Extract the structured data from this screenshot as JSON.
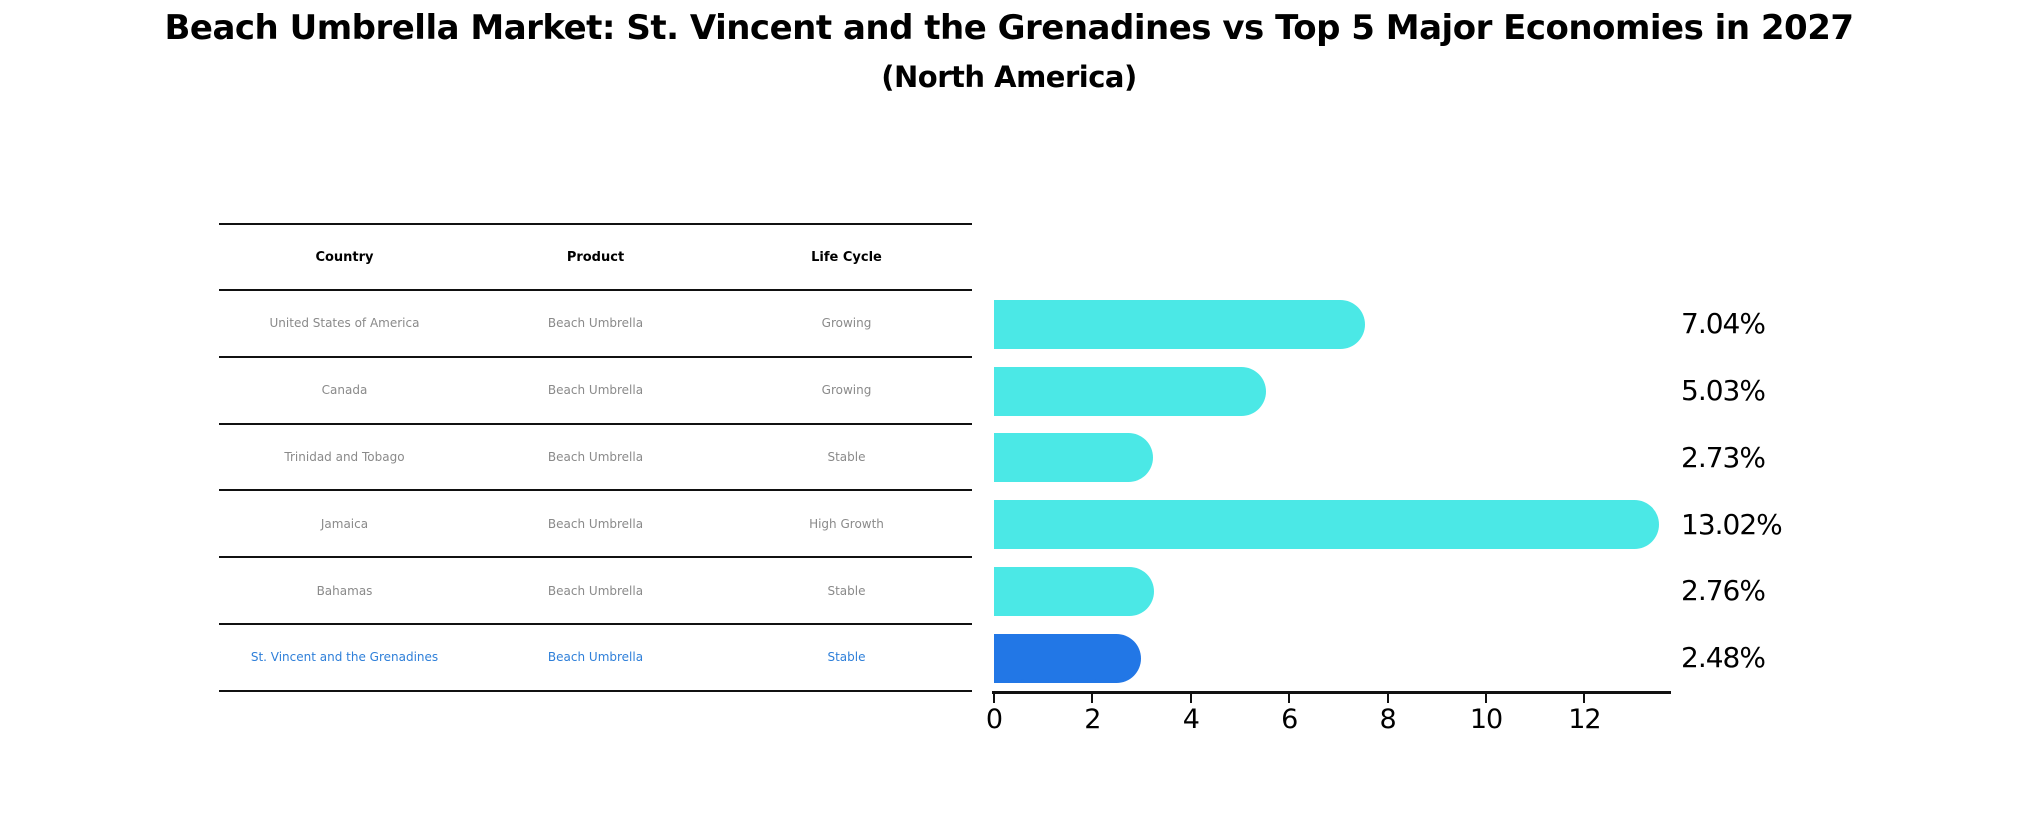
{
  "title": "Beach Umbrella Market: St. Vincent and the Grenadines vs Top 5 Major Economies in 2027",
  "subtitle": "(North America)",
  "table": {
    "columns": [
      "Country",
      "Product",
      "Life Cycle"
    ],
    "rows": [
      {
        "country": "United States of America",
        "product": "Beach Umbrella",
        "life_cycle": "Growing",
        "highlight": false
      },
      {
        "country": "Canada",
        "product": "Beach Umbrella",
        "life_cycle": "Growing",
        "highlight": false
      },
      {
        "country": "Trinidad and Tobago",
        "product": "Beach Umbrella",
        "life_cycle": "Stable",
        "highlight": false
      },
      {
        "country": "Jamaica",
        "product": "Beach Umbrella",
        "life_cycle": "High Growth",
        "highlight": false
      },
      {
        "country": "Bahamas",
        "product": "Beach Umbrella",
        "life_cycle": "Stable",
        "highlight": false
      },
      {
        "country": "St. Vincent and the Grenadines",
        "product": "Beach Umbrella",
        "life_cycle": "Stable",
        "highlight": true
      }
    ]
  },
  "chart_data": {
    "type": "bar",
    "orientation": "horizontal",
    "title": "Beach Umbrella Market: St. Vincent and the Grenadines vs Top 5 Major Economies in 2027",
    "subtitle": "(North America)",
    "categories": [
      "United States of America",
      "Canada",
      "Trinidad and Tobago",
      "Jamaica",
      "Bahamas",
      "St. Vincent and the Grenadines"
    ],
    "values": [
      7.04,
      5.03,
      2.73,
      13.02,
      2.76,
      2.48
    ],
    "value_labels": [
      "7.04%",
      "5.03%",
      "2.73%",
      "13.02%",
      "2.76%",
      "2.48%"
    ],
    "xlabel": "",
    "ylabel": "",
    "xlim": [
      0,
      13.75
    ],
    "xticks": [
      0,
      2,
      4,
      6,
      8,
      10,
      12
    ],
    "grid": false,
    "legend": false,
    "bar_color": "#4be8e6",
    "highlight_color": "#2277e6",
    "highlight_index": 5
  },
  "colors": {
    "background": "#ffffff",
    "title_text": "#000000",
    "table_line": "#111111",
    "table_header_text": "#000000",
    "table_row_text": "#8a8a8a",
    "table_highlight_text": "#2e7fd9",
    "bar": "#4be8e6",
    "highlight_bar": "#2277e6",
    "axis": "#111111",
    "value_label_text": "#000000"
  }
}
